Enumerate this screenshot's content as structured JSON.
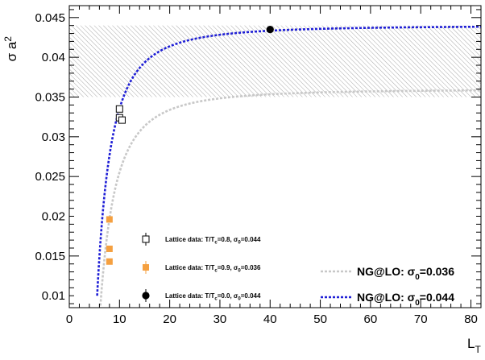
{
  "chart_data": {
    "type": "scatter",
    "title": "",
    "xlabel": "L_T",
    "ylabel": "σ a^2",
    "xlim": [
      0,
      82
    ],
    "ylim": [
      0.0085,
      0.0465
    ],
    "x_ticks": [
      0,
      10,
      20,
      30,
      40,
      50,
      60,
      70,
      80
    ],
    "y_ticks": [
      0.01,
      0.015,
      0.02,
      0.025,
      0.03,
      0.035,
      0.04,
      0.045
    ],
    "grid": false,
    "band": {
      "y_low": 0.035,
      "y_high": 0.044,
      "fill": "hatched-grey"
    },
    "series": [
      {
        "name": "Lattice data: T/T_c=0.8, σ_0=0.044",
        "legend": {
          "main": "Lattice data: T/T",
          "sub1": "c",
          "mid": "=0.8, σ",
          "sub2": "0",
          "tail": "=0.044"
        },
        "marker": "open-square",
        "color": "#000000",
        "points": [
          {
            "x": 10.0,
            "y": 0.0335,
            "err": 0.0003
          },
          {
            "x": 10.0,
            "y": 0.0324,
            "err": 0.0003
          },
          {
            "x": 10.5,
            "y": 0.0321,
            "err": 0.0003
          }
        ]
      },
      {
        "name": "Lattice data: T/T_c=0.9, σ_0=0.036",
        "legend": {
          "main": "Lattice data: T/T",
          "sub1": "c",
          "mid": "=0.9, σ",
          "sub2": "0",
          "tail": "=0.036"
        },
        "marker": "filled-square",
        "color": "#f5a040",
        "points": [
          {
            "x": 8.0,
            "y": 0.0196,
            "err": 0.0002
          },
          {
            "x": 8.0,
            "y": 0.0159,
            "err": 0.0002
          },
          {
            "x": 8.0,
            "y": 0.0143,
            "err": 0.0002
          }
        ]
      },
      {
        "name": "Lattice data: T/T_c=0.0, σ_0=0.044",
        "legend": {
          "main": "Lattice data: T/T",
          "sub1": "c",
          "mid": "=0.0, σ",
          "sub2": "0",
          "tail": "=0.044"
        },
        "marker": "filled-circle",
        "color": "#000000",
        "points": [
          {
            "x": 40.0,
            "y": 0.0435,
            "err": 0.0002
          }
        ]
      }
    ],
    "curves": [
      {
        "name": "NG@LO: σ_0=0.036",
        "legend": {
          "main": "NG@LO:  σ",
          "sub": "0",
          "tail": "=0.036"
        },
        "sigma0": 0.036,
        "color": "#c8c8c8",
        "style": "dotted",
        "x_start": 6.2,
        "x_end": 82
      },
      {
        "name": "NG@LO: σ_0=0.044",
        "legend": {
          "main": "NG@LO:  σ",
          "sub": "0",
          "tail": "=0.044"
        },
        "sigma0": 0.044,
        "color": "#1f1fd6",
        "style": "dotted",
        "x_start": 5.55,
        "x_end": 82
      }
    ],
    "legend_position": "bottom-right"
  },
  "axes": {
    "x_title_main": "L",
    "x_title_sub": "T",
    "y_title_main": "σ a",
    "y_title_sup": "2"
  }
}
